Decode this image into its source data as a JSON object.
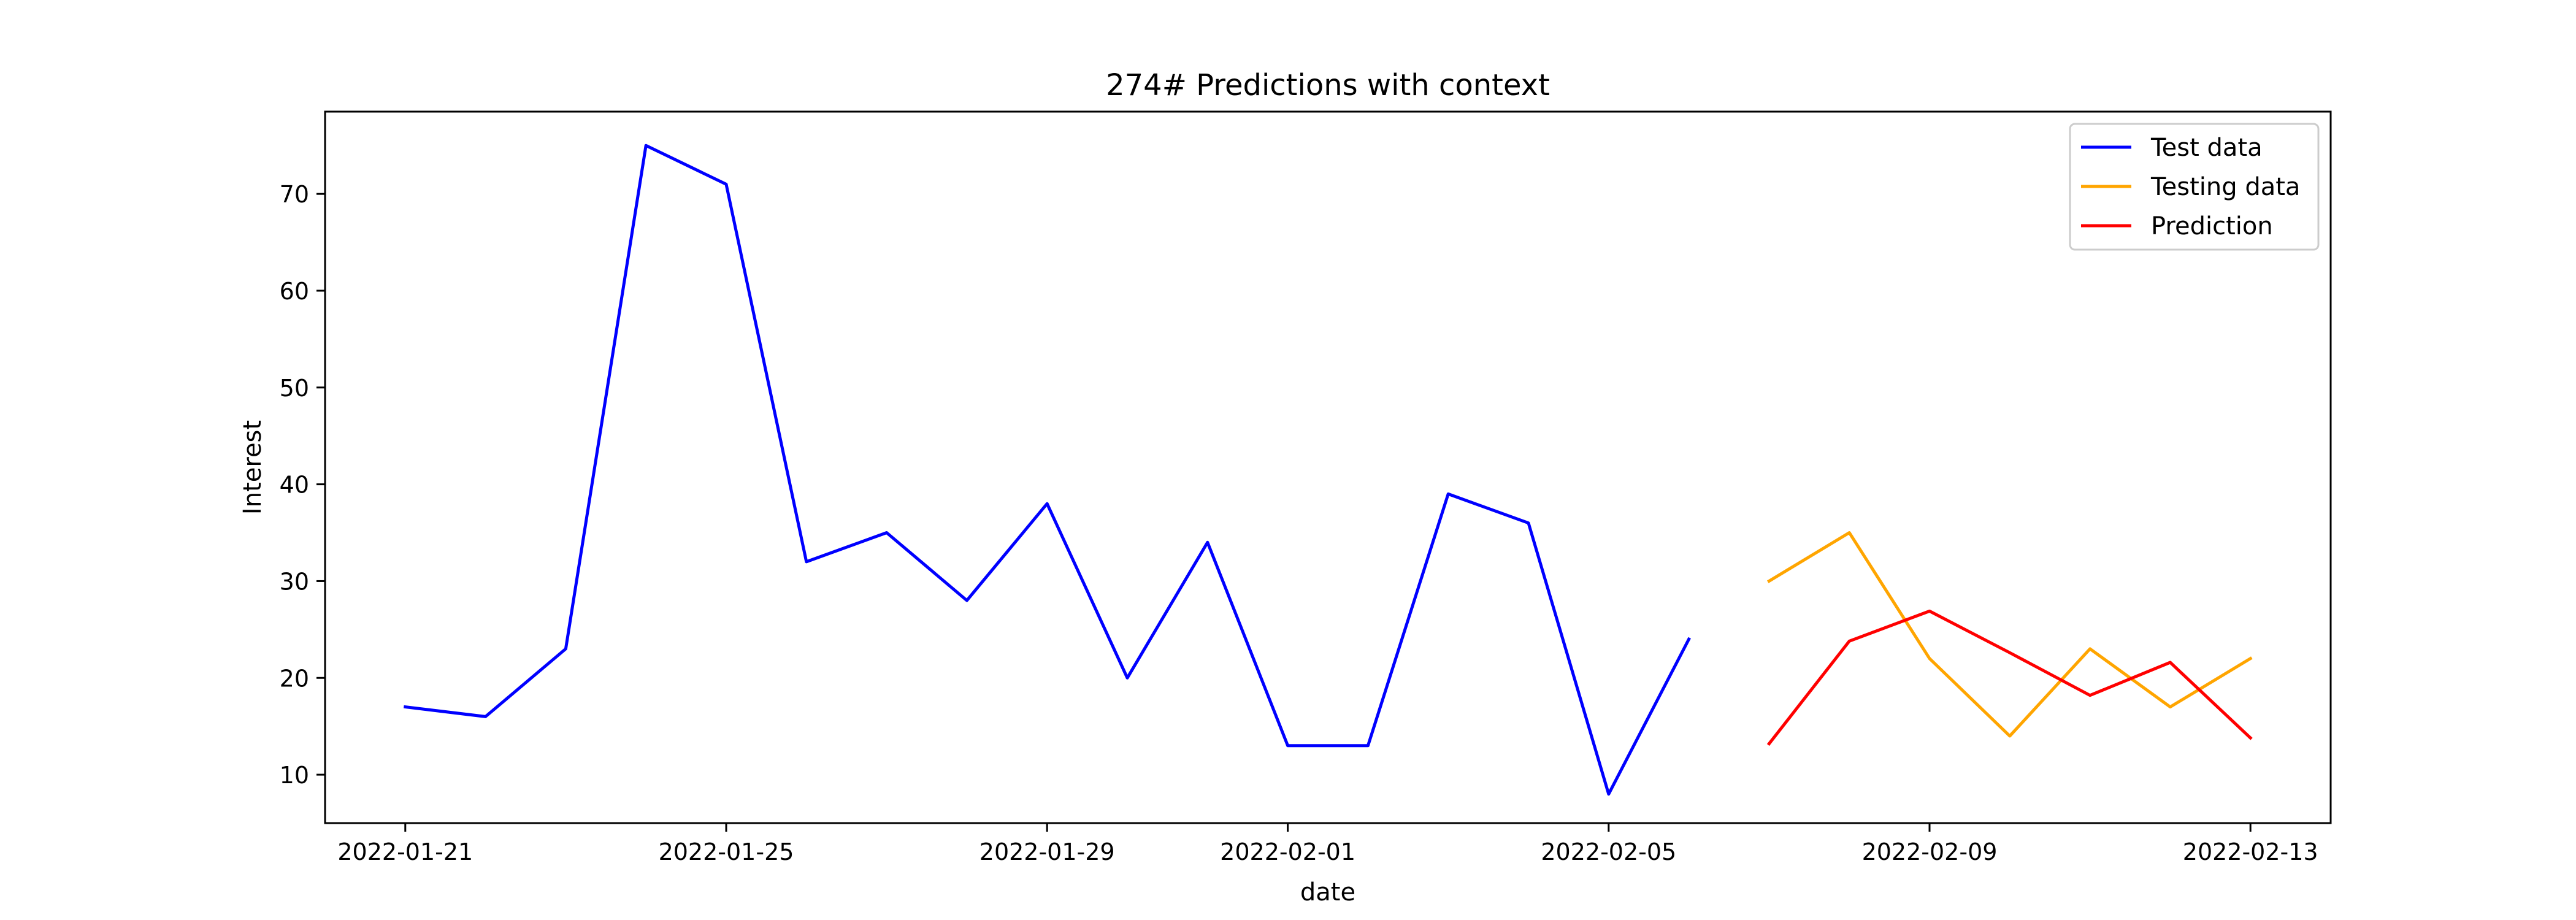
{
  "chart_data": {
    "type": "line",
    "title": "274# Predictions with context",
    "xlabel": "date",
    "ylabel": "Interest",
    "xlim": [
      "2022-01-20",
      "2022-02-14"
    ],
    "ylim": [
      5,
      78.5
    ],
    "x_ticks": [
      "2022-01-21",
      "2022-01-25",
      "2022-01-29",
      "2022-02-01",
      "2022-02-05",
      "2022-02-09",
      "2022-02-13"
    ],
    "y_ticks": [
      10,
      20,
      30,
      40,
      50,
      60,
      70
    ],
    "grid": false,
    "legend_position": "top-right",
    "series": [
      {
        "name": "Test data",
        "color": "#0000ff",
        "x": [
          "2022-01-21",
          "2022-01-22",
          "2022-01-23",
          "2022-01-24",
          "2022-01-25",
          "2022-01-26",
          "2022-01-27",
          "2022-01-28",
          "2022-01-29",
          "2022-01-30",
          "2022-01-31",
          "2022-02-01",
          "2022-02-02",
          "2022-02-03",
          "2022-02-04",
          "2022-02-05",
          "2022-02-06"
        ],
        "values": [
          17,
          16,
          23,
          75,
          71,
          32,
          35,
          28,
          38,
          20,
          34,
          13,
          13,
          39,
          36,
          8,
          24
        ]
      },
      {
        "name": "Testing data",
        "color": "#ffa500",
        "x": [
          "2022-02-07",
          "2022-02-08",
          "2022-02-09",
          "2022-02-10",
          "2022-02-11",
          "2022-02-12",
          "2022-02-13"
        ],
        "values": [
          30,
          35,
          22,
          14,
          23,
          17,
          22
        ]
      },
      {
        "name": "Prediction",
        "color": "#ff0000",
        "x": [
          "2022-02-07",
          "2022-02-08",
          "2022-02-09",
          "2022-02-10",
          "2022-02-11",
          "2022-02-12",
          "2022-02-13"
        ],
        "values": [
          13.2,
          23.8,
          26.9,
          22.6,
          18.2,
          21.6,
          13.8
        ]
      }
    ]
  }
}
